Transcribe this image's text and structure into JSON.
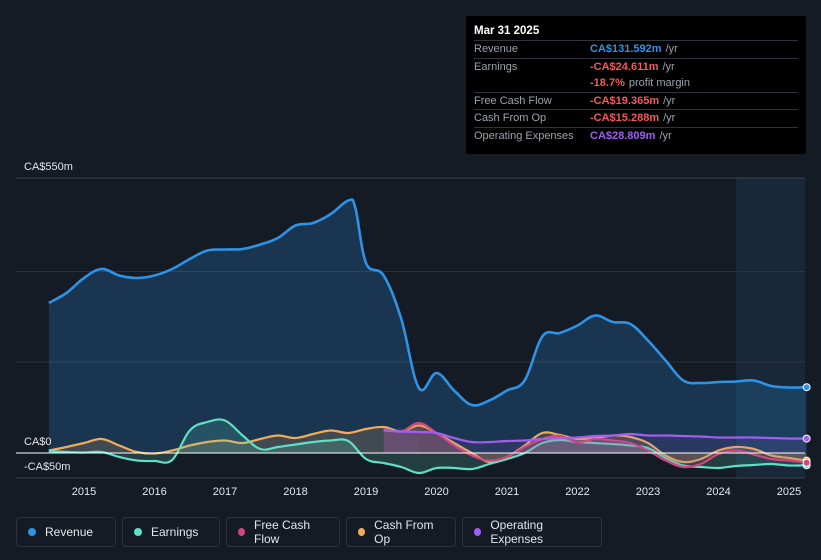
{
  "tooltip": {
    "date": "Mar 31 2025",
    "rows": [
      {
        "label": "Revenue",
        "value": "CA$131.592m",
        "unit": "/yr",
        "color": "#2e93e6"
      },
      {
        "label": "Earnings",
        "value": "-CA$24.611m",
        "unit": "/yr",
        "color": "#f25a5a"
      },
      {
        "label": "",
        "value": "-18.7%",
        "unit": "profit margin",
        "color": "#f25a5a"
      },
      {
        "label": "Free Cash Flow",
        "value": "-CA$19.365m",
        "unit": "/yr",
        "color": "#f25a5a"
      },
      {
        "label": "Cash From Op",
        "value": "-CA$15.288m",
        "unit": "/yr",
        "color": "#f25a5a"
      },
      {
        "label": "Operating Expenses",
        "value": "CA$28.809m",
        "unit": "/yr",
        "color": "#a25ef0"
      }
    ]
  },
  "legend": [
    {
      "label": "Revenue",
      "color": "#2e93e6"
    },
    {
      "label": "Earnings",
      "color": "#5ee0c5"
    },
    {
      "label": "Free Cash Flow",
      "color": "#d1467e"
    },
    {
      "label": "Cash From Op",
      "color": "#f0ac58"
    },
    {
      "label": "Operating Expenses",
      "color": "#a25ef0"
    }
  ],
  "chart_data": {
    "type": "area",
    "y_labels": [
      "CA$550m",
      "CA$0",
      "-CA$50m"
    ],
    "ylim": [
      -50,
      550
    ],
    "xlim": [
      2014.5,
      2025.25
    ],
    "x_ticks": [
      2015,
      2016,
      2017,
      2018,
      2019,
      2020,
      2021,
      2022,
      2023,
      2024,
      2025
    ],
    "x_tick_labels": [
      "2015",
      "2016",
      "2017",
      "2018",
      "2019",
      "2020",
      "2021",
      "2022",
      "2023",
      "2024",
      "2025"
    ],
    "forecast_start": 2024.25,
    "past_data_end": 2019.25,
    "series": [
      {
        "name": "Revenue",
        "color": "#2e93e6",
        "points": [
          [
            2014.5,
            300
          ],
          [
            2014.75,
            320
          ],
          [
            2015.0,
            350
          ],
          [
            2015.25,
            368
          ],
          [
            2015.5,
            355
          ],
          [
            2015.75,
            350
          ],
          [
            2016.0,
            355
          ],
          [
            2016.25,
            368
          ],
          [
            2016.5,
            388
          ],
          [
            2016.75,
            405
          ],
          [
            2017.0,
            407
          ],
          [
            2017.25,
            408
          ],
          [
            2017.5,
            417
          ],
          [
            2017.75,
            430
          ],
          [
            2018.0,
            455
          ],
          [
            2018.25,
            460
          ],
          [
            2018.5,
            478
          ],
          [
            2018.75,
            505
          ],
          [
            2018.85,
            490
          ],
          [
            2019.0,
            380
          ],
          [
            2019.25,
            355
          ],
          [
            2019.5,
            268
          ],
          [
            2019.75,
            130
          ],
          [
            2020.0,
            160
          ],
          [
            2020.25,
            125
          ],
          [
            2020.5,
            96
          ],
          [
            2020.75,
            105
          ],
          [
            2021.0,
            125
          ],
          [
            2021.25,
            145
          ],
          [
            2021.5,
            233
          ],
          [
            2021.75,
            240
          ],
          [
            2022.0,
            255
          ],
          [
            2022.25,
            275
          ],
          [
            2022.5,
            262
          ],
          [
            2022.75,
            258
          ],
          [
            2023.0,
            225
          ],
          [
            2023.25,
            185
          ],
          [
            2023.5,
            145
          ],
          [
            2023.75,
            140
          ],
          [
            2024.0,
            142
          ],
          [
            2024.25,
            143
          ],
          [
            2024.5,
            145
          ],
          [
            2024.75,
            134
          ],
          [
            2025.0,
            131
          ],
          [
            2025.25,
            131.6
          ]
        ]
      },
      {
        "name": "Earnings",
        "color": "#5ee0c5",
        "points": [
          [
            2014.5,
            4
          ],
          [
            2014.75,
            2
          ],
          [
            2015.0,
            1
          ],
          [
            2015.25,
            2
          ],
          [
            2015.5,
            -8
          ],
          [
            2015.75,
            -15
          ],
          [
            2016.0,
            -16
          ],
          [
            2016.25,
            -14
          ],
          [
            2016.5,
            45
          ],
          [
            2016.75,
            62
          ],
          [
            2017.0,
            65
          ],
          [
            2017.25,
            35
          ],
          [
            2017.5,
            8
          ],
          [
            2017.75,
            12
          ],
          [
            2018.0,
            17
          ],
          [
            2018.25,
            22
          ],
          [
            2018.5,
            25
          ],
          [
            2018.75,
            24
          ],
          [
            2019.0,
            -12
          ],
          [
            2019.25,
            -20
          ],
          [
            2019.5,
            -28
          ],
          [
            2019.75,
            -40
          ],
          [
            2020.0,
            -30
          ],
          [
            2020.25,
            -30
          ],
          [
            2020.5,
            -32
          ],
          [
            2020.75,
            -22
          ],
          [
            2021.0,
            -12
          ],
          [
            2021.25,
            0
          ],
          [
            2021.5,
            20
          ],
          [
            2021.75,
            26
          ],
          [
            2022.0,
            22
          ],
          [
            2022.25,
            20
          ],
          [
            2022.5,
            18
          ],
          [
            2022.75,
            15
          ],
          [
            2023.0,
            10
          ],
          [
            2023.25,
            -10
          ],
          [
            2023.5,
            -25
          ],
          [
            2023.75,
            -28
          ],
          [
            2024.0,
            -30
          ],
          [
            2024.25,
            -26
          ],
          [
            2024.5,
            -24
          ],
          [
            2024.75,
            -22
          ],
          [
            2025.0,
            -25
          ],
          [
            2025.25,
            -24.6
          ]
        ]
      },
      {
        "name": "Free Cash Flow",
        "color": "#d1467e",
        "points": [
          [
            2019.25,
            48
          ],
          [
            2019.5,
            43
          ],
          [
            2019.75,
            60
          ],
          [
            2020.0,
            40
          ],
          [
            2020.25,
            15
          ],
          [
            2020.5,
            -5
          ],
          [
            2020.75,
            -15
          ],
          [
            2021.0,
            -8
          ],
          [
            2021.25,
            12
          ],
          [
            2021.5,
            28
          ],
          [
            2021.75,
            34
          ],
          [
            2022.0,
            22
          ],
          [
            2022.25,
            28
          ],
          [
            2022.5,
            25
          ],
          [
            2022.75,
            20
          ],
          [
            2023.0,
            5
          ],
          [
            2023.25,
            -15
          ],
          [
            2023.5,
            -28
          ],
          [
            2023.75,
            -22
          ],
          [
            2024.0,
            -2
          ],
          [
            2024.25,
            5
          ],
          [
            2024.5,
            -3
          ],
          [
            2024.75,
            -12
          ],
          [
            2025.0,
            -15
          ],
          [
            2025.25,
            -19.4
          ]
        ]
      },
      {
        "name": "Cash From Op",
        "color": "#f0ac58",
        "points": [
          [
            2014.5,
            5
          ],
          [
            2014.75,
            12
          ],
          [
            2015.0,
            20
          ],
          [
            2015.25,
            28
          ],
          [
            2015.5,
            15
          ],
          [
            2015.75,
            2
          ],
          [
            2016.0,
            -1
          ],
          [
            2016.25,
            5
          ],
          [
            2016.5,
            15
          ],
          [
            2016.75,
            22
          ],
          [
            2017.0,
            25
          ],
          [
            2017.25,
            20
          ],
          [
            2017.5,
            28
          ],
          [
            2017.75,
            35
          ],
          [
            2018.0,
            30
          ],
          [
            2018.25,
            38
          ],
          [
            2018.5,
            45
          ],
          [
            2018.75,
            40
          ],
          [
            2019.0,
            48
          ],
          [
            2019.25,
            52
          ],
          [
            2019.5,
            43
          ],
          [
            2019.75,
            55
          ],
          [
            2020.0,
            40
          ],
          [
            2020.25,
            20
          ],
          [
            2020.5,
            0
          ],
          [
            2020.75,
            -18
          ],
          [
            2021.0,
            -8
          ],
          [
            2021.25,
            15
          ],
          [
            2021.5,
            40
          ],
          [
            2021.75,
            36
          ],
          [
            2022.0,
            28
          ],
          [
            2022.25,
            30
          ],
          [
            2022.5,
            35
          ],
          [
            2022.75,
            32
          ],
          [
            2023.0,
            20
          ],
          [
            2023.25,
            -5
          ],
          [
            2023.5,
            -18
          ],
          [
            2023.75,
            -12
          ],
          [
            2024.0,
            5
          ],
          [
            2024.25,
            12
          ],
          [
            2024.5,
            8
          ],
          [
            2024.75,
            -5
          ],
          [
            2025.0,
            -10
          ],
          [
            2025.25,
            -15.3
          ]
        ]
      },
      {
        "name": "Operating Expenses",
        "color": "#a25ef0",
        "points": [
          [
            2019.25,
            45
          ],
          [
            2019.5,
            43
          ],
          [
            2019.75,
            42
          ],
          [
            2020.0,
            40
          ],
          [
            2020.25,
            30
          ],
          [
            2020.5,
            22
          ],
          [
            2020.75,
            22
          ],
          [
            2021.0,
            24
          ],
          [
            2021.25,
            25
          ],
          [
            2021.5,
            28
          ],
          [
            2021.75,
            30
          ],
          [
            2022.0,
            31
          ],
          [
            2022.25,
            34
          ],
          [
            2022.5,
            35
          ],
          [
            2022.75,
            38
          ],
          [
            2023.0,
            35
          ],
          [
            2023.25,
            35
          ],
          [
            2023.5,
            34
          ],
          [
            2023.75,
            33
          ],
          [
            2024.0,
            31
          ],
          [
            2024.25,
            31
          ],
          [
            2024.5,
            31
          ],
          [
            2024.75,
            30
          ],
          [
            2025.0,
            29
          ],
          [
            2025.25,
            28.8
          ]
        ]
      }
    ]
  }
}
